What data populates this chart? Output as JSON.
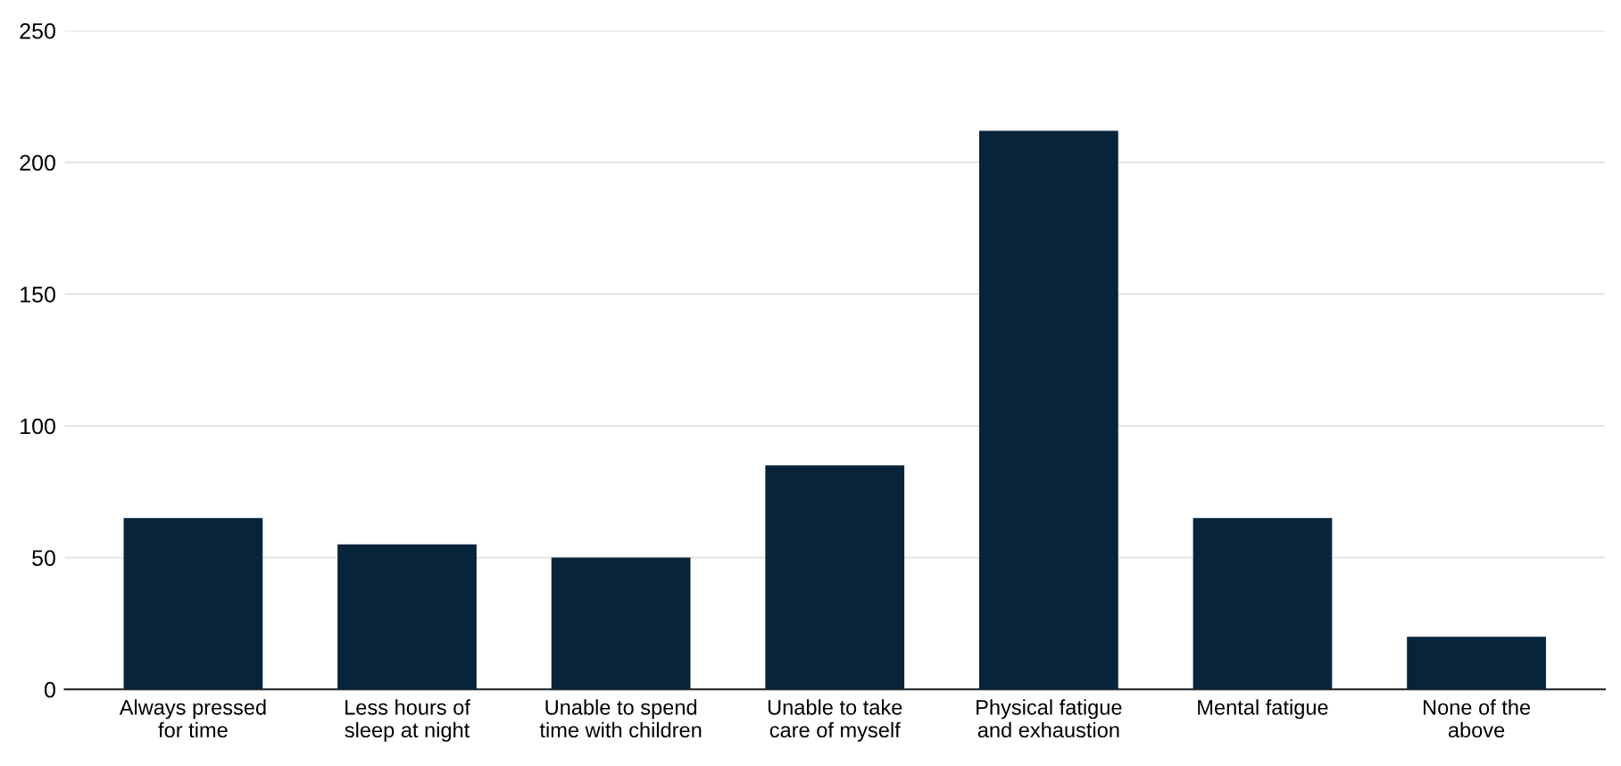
{
  "chart_data": {
    "type": "bar",
    "categories": [
      "Always pressed\nfor time",
      "Less hours of\nsleep at night",
      "Unable to spend\ntime with children",
      "Unable to take\ncare of myself",
      "Physical fatigue\nand exhaustion",
      "Mental fatigue",
      "None of the\nabove"
    ],
    "values": [
      65,
      55,
      50,
      85,
      212,
      65,
      20
    ],
    "color": "#08243a",
    "ylim": [
      0,
      250
    ],
    "yticks": [
      0,
      50,
      100,
      150,
      200,
      250
    ],
    "grid": "y",
    "legend": false
  }
}
